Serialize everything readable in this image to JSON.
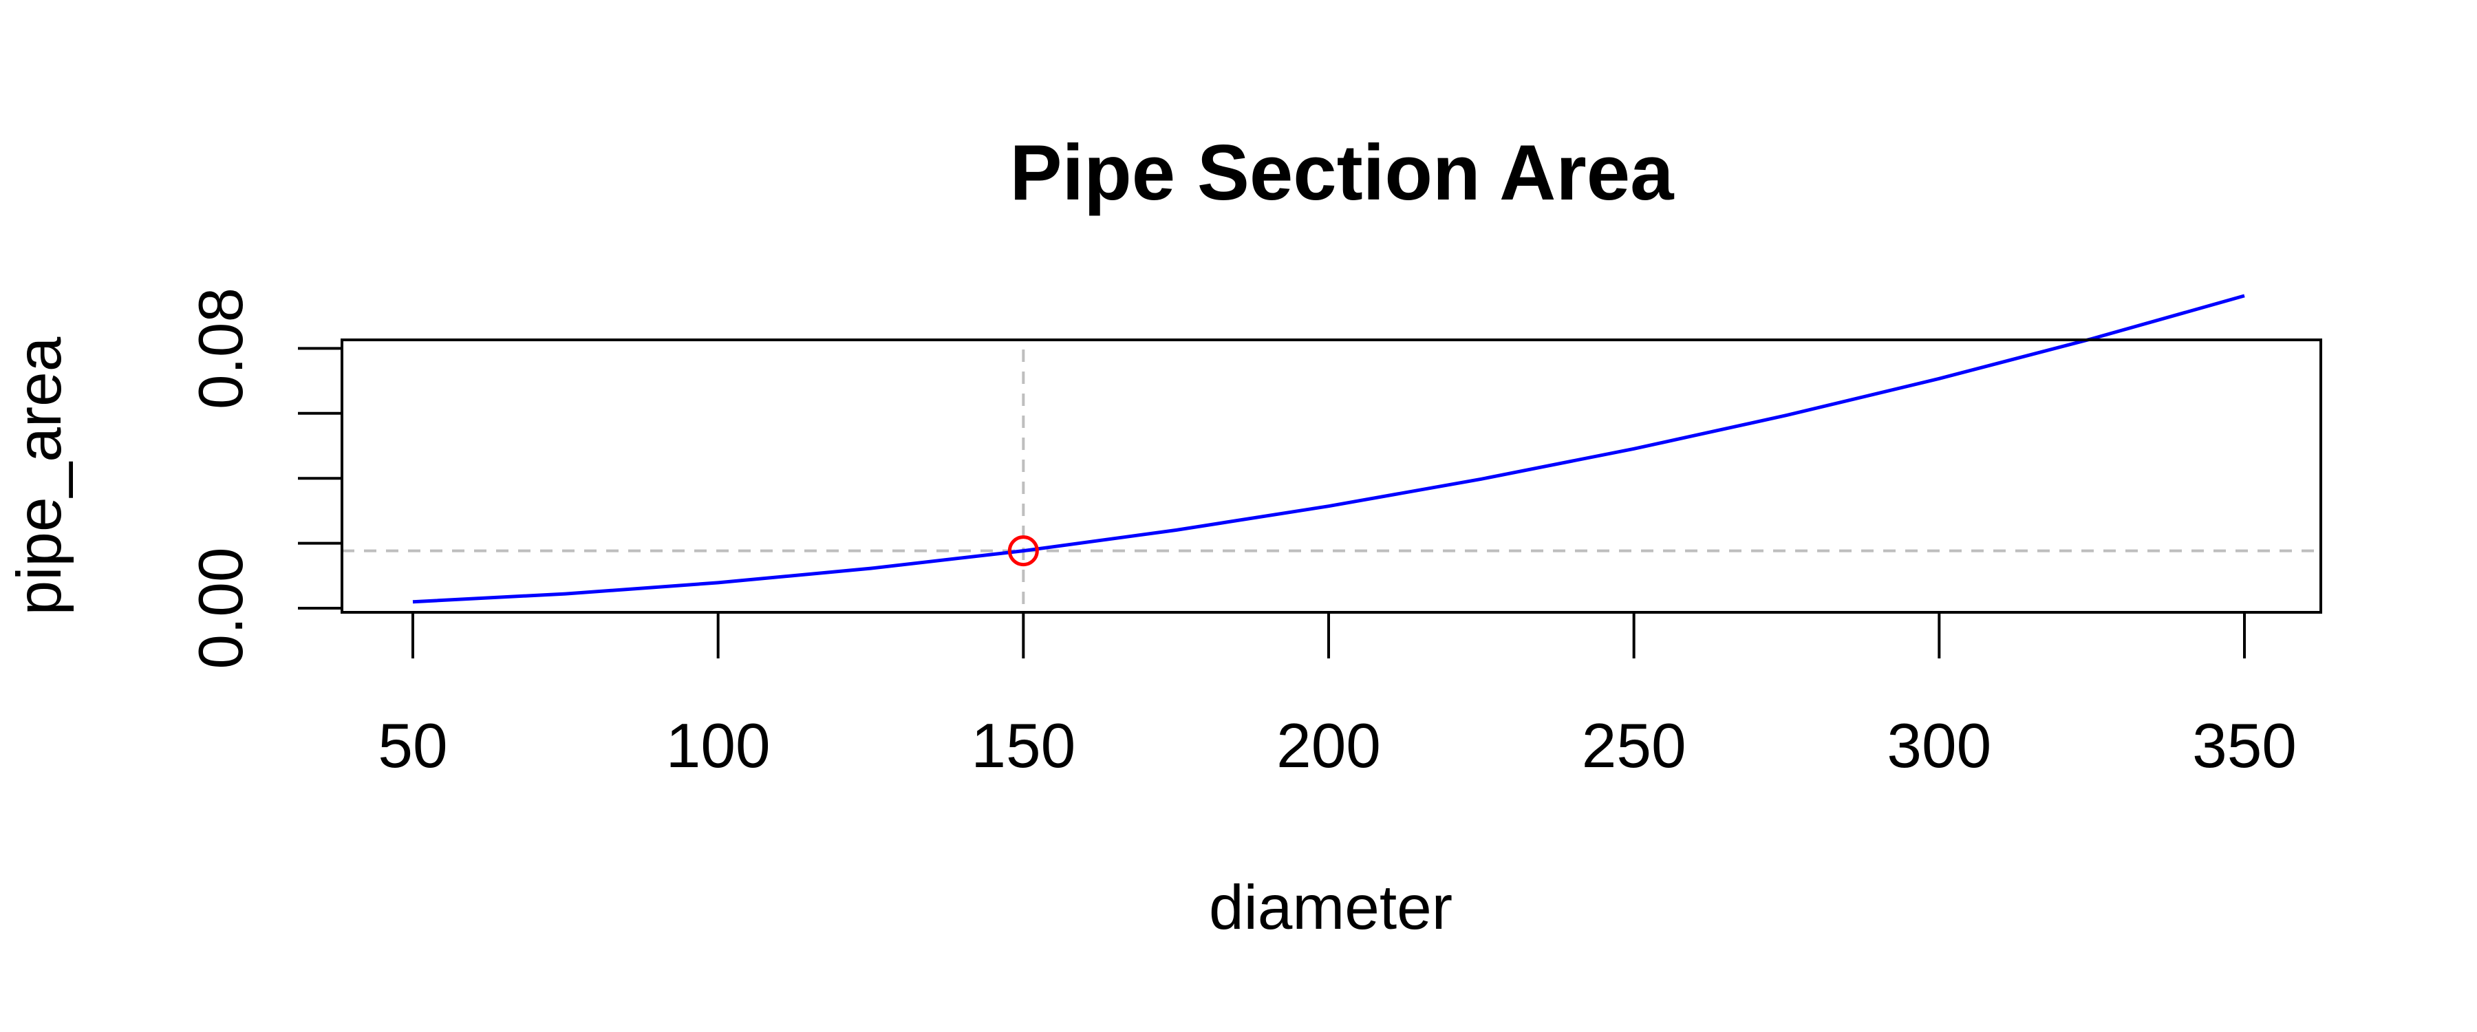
{
  "chart_data": {
    "type": "line",
    "title": "Pipe Section Area",
    "xlabel": "diameter",
    "ylabel": "pipe_area",
    "xlim": [
      50,
      350
    ],
    "ylim": [
      0,
      0.1
    ],
    "x_ticks": [
      50,
      100,
      150,
      200,
      250,
      300,
      350
    ],
    "x_tick_labels": [
      "50",
      "100",
      "150",
      "200",
      "250",
      "300",
      "350"
    ],
    "y_ticks": [
      0,
      0.02,
      0.04,
      0.06,
      0.08
    ],
    "y_tick_labels": [
      "0.00",
      "",
      "",
      "",
      "0.08"
    ],
    "grid": false,
    "legend": "none",
    "series": [
      {
        "color": "#0000ff",
        "x": [
          50,
          75,
          100,
          125,
          150,
          175,
          200,
          225,
          250,
          275,
          300,
          325,
          350
        ],
        "y": [
          0.00196,
          0.00442,
          0.00785,
          0.01227,
          0.01767,
          0.02405,
          0.03142,
          0.03976,
          0.04909,
          0.0594,
          0.07069,
          0.08296,
          0.09621
        ]
      }
    ],
    "reference_lines": {
      "x": 150,
      "y": 0.01767,
      "color": "#bebebe",
      "style": "dashed"
    },
    "highlight_point": {
      "x": 150,
      "y": 0.01767,
      "color": "#ff0000",
      "marker": "open-circle"
    }
  }
}
